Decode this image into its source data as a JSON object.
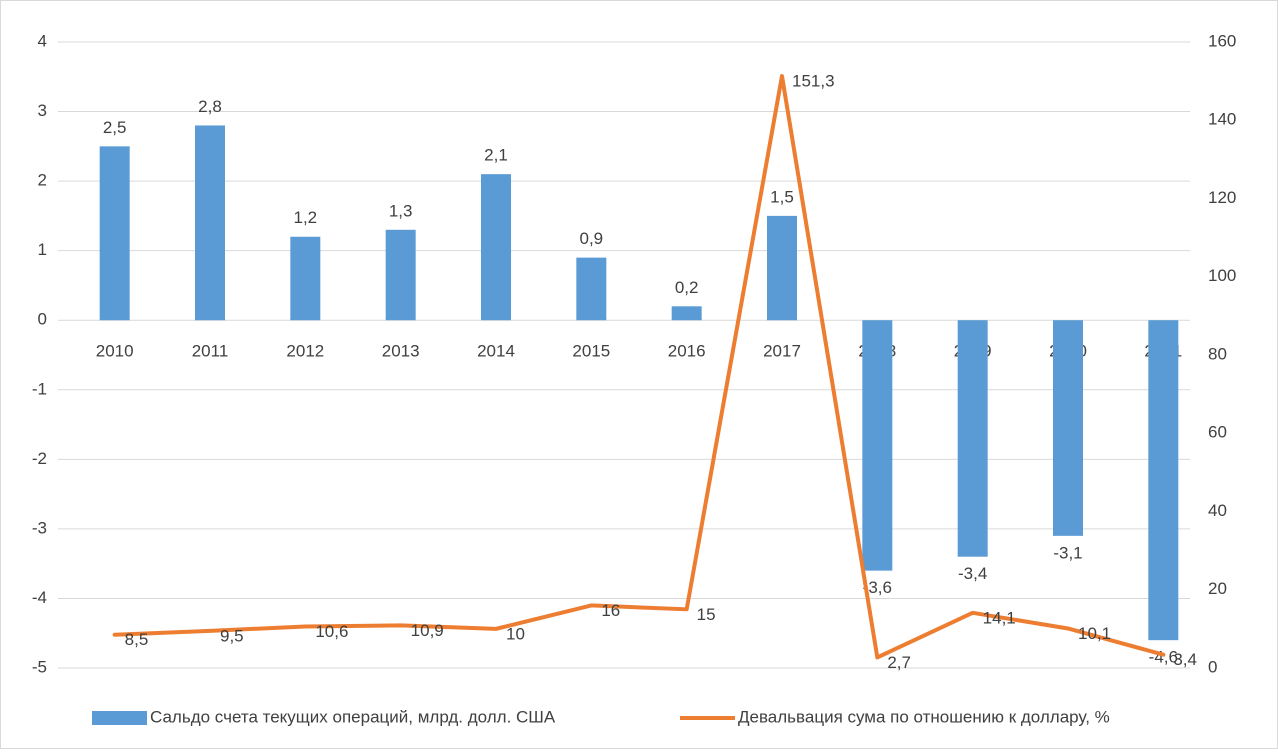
{
  "chart_data": {
    "type": "bar_line",
    "categories": [
      "2010",
      "2011",
      "2012",
      "2013",
      "2014",
      "2015",
      "2016",
      "2017",
      "2018",
      "2019",
      "2020",
      "2021"
    ],
    "series": [
      {
        "name": "Сальдо счета текущих операций, млрд. долл. США",
        "color": "#5b9bd5",
        "type": "bar",
        "values": [
          2.5,
          2.8,
          1.2,
          1.3,
          2.1,
          0.9,
          0.2,
          1.5,
          -3.6,
          -3.4,
          -3.1,
          -4.6
        ],
        "value_labels": [
          "2,5",
          "2,8",
          "1,2",
          "1,3",
          "2,1",
          "0,9",
          "0,2",
          "1,5",
          "-3,6",
          "-3,4",
          "-3,1",
          "-4,6"
        ]
      },
      {
        "name": "Девальвация сума по отношению к доллару, %",
        "color": "#ed7d31",
        "type": "line",
        "axis": "y2",
        "values": [
          8.5,
          9.5,
          10.6,
          10.9,
          10,
          16,
          15,
          151.3,
          2.7,
          14.1,
          10.1,
          3.4
        ],
        "value_labels": [
          "8,5",
          "9,5",
          "10,6",
          "10,9",
          "10",
          "16",
          "15",
          "151,3",
          "2,7",
          "14,1",
          "10,1",
          "3,4"
        ]
      }
    ],
    "ylim": [
      -5,
      4
    ],
    "yticks": [
      4,
      3,
      2,
      1,
      0,
      -1,
      -2,
      -3,
      -4,
      -5
    ],
    "y2lim": [
      0,
      160
    ],
    "y2ticks": [
      160,
      140,
      120,
      100,
      80,
      60,
      40,
      20,
      0
    ],
    "grid": true,
    "legend": "bottom"
  }
}
